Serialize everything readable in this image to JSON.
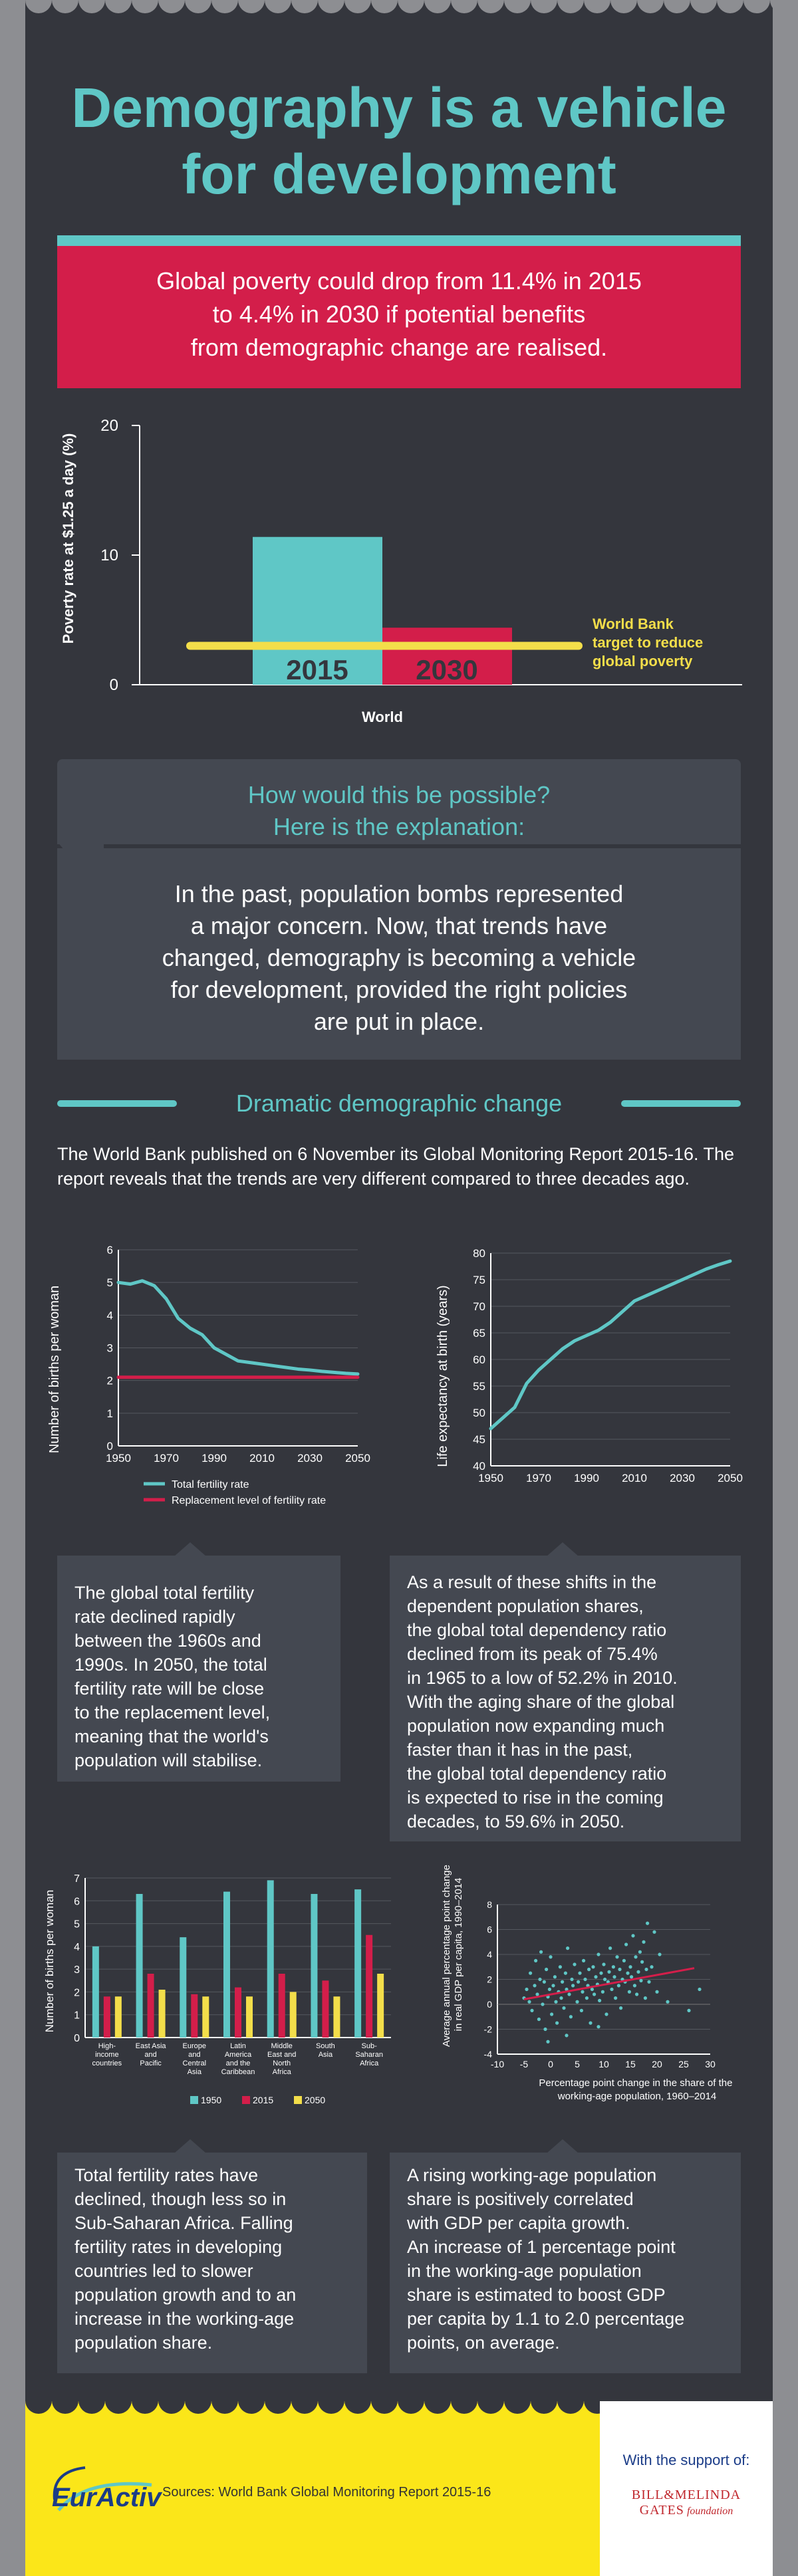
{
  "title_lines": [
    "Demography is a vehicle",
    "for development"
  ],
  "highlight_lines": [
    "Global poverty could drop from 11.4% in 2015",
    "to 4.4% in 2030 if potential benefits",
    "from demographic change are realised."
  ],
  "poverty_chart": {
    "type": "bar",
    "categories": [
      "2015",
      "2030"
    ],
    "values": [
      11.4,
      4.4
    ],
    "ylabel": "Poverty rate at $1.25 a day (%)",
    "xlabel": "World",
    "ylim": [
      0,
      20
    ],
    "yticks": [
      "0",
      "10",
      "20"
    ],
    "target_value": 3,
    "target_label_lines": [
      "World Bank",
      "target to reduce",
      "global poverty"
    ],
    "colors": {
      "2015": "#5fc7c6",
      "2030": "#d31e4a",
      "target": "#f3de4a"
    }
  },
  "question_lines": [
    "How would this be possible?",
    "Here is the explanation:"
  ],
  "explanation_lines": [
    "In the past, population bombs represented",
    "a major concern. Now, that trends have",
    "changed, demography is becoming a vehicle",
    "for development, provided the right policies",
    "are put in place."
  ],
  "section_heading": "Dramatic demographic change",
  "intro_text": "The World Bank published on 6 November its Global Monitoring Report 2015-16. The report reveals that the trends are very different compared to three decades ago.",
  "chart_data": [
    {
      "type": "line",
      "ylabel": "Number of births per woman",
      "ylim": [
        0,
        6
      ],
      "yticks": [
        "0",
        "1",
        "2",
        "3",
        "4",
        "5",
        "6"
      ],
      "xticks": [
        "1950",
        "1970",
        "1990",
        "2010",
        "2030",
        "2050"
      ],
      "series": [
        {
          "name": "Total fertility rate",
          "x": [
            1950,
            1955,
            1960,
            1965,
            1970,
            1975,
            1980,
            1985,
            1990,
            1995,
            2000,
            2005,
            2010,
            2015,
            2020,
            2025,
            2030,
            2035,
            2040,
            2045,
            2050
          ],
          "values": [
            5.0,
            4.95,
            5.05,
            4.9,
            4.5,
            3.9,
            3.6,
            3.4,
            3.0,
            2.8,
            2.6,
            2.55,
            2.5,
            2.45,
            2.4,
            2.35,
            2.32,
            2.28,
            2.25,
            2.22,
            2.2
          ],
          "color": "#5fc7c6"
        },
        {
          "name": "Replacement level of fertility rate",
          "x": [
            1950,
            2050
          ],
          "values": [
            2.1,
            2.1
          ],
          "color": "#d31e4a"
        }
      ]
    },
    {
      "type": "line",
      "ylabel": "Life expectancy at birth (years)",
      "ylim": [
        40,
        80
      ],
      "yticks": [
        "40",
        "45",
        "50",
        "55",
        "60",
        "65",
        "70",
        "75",
        "80"
      ],
      "xticks": [
        "1950",
        "1970",
        "1990",
        "2010",
        "2030",
        "2050"
      ],
      "series": [
        {
          "x": [
            1950,
            1955,
            1960,
            1965,
            1970,
            1975,
            1980,
            1985,
            1990,
            1995,
            2000,
            2005,
            2010,
            2015,
            2020,
            2025,
            2030,
            2035,
            2040,
            2045,
            2050
          ],
          "values": [
            47,
            49,
            51,
            55.5,
            58,
            60,
            62,
            63.5,
            64.5,
            65.5,
            67,
            69,
            71,
            72,
            73,
            74,
            75,
            76,
            77,
            77.8,
            78.5
          ],
          "color": "#5fc7c6"
        }
      ]
    },
    {
      "type": "bar",
      "ylabel": "Number of births per woman",
      "ylim": [
        0,
        7
      ],
      "yticks": [
        "0",
        "1",
        "2",
        "3",
        "4",
        "5",
        "6",
        "7"
      ],
      "categories": [
        "High-income countries",
        "East Asia and Pacific",
        "Europe and Central Asia",
        "Latin America and the Caribbean",
        "Middle East and North Africa",
        "South Asia",
        "Sub-Saharan Africa"
      ],
      "category_label_lines": [
        [
          "High-",
          "income",
          "countries"
        ],
        [
          "East Asia",
          "and",
          "Pacific"
        ],
        [
          "Europe",
          "and",
          "Central",
          "Asia"
        ],
        [
          "Latin",
          "America",
          "and the",
          "Caribbean"
        ],
        [
          "Middle",
          "East and",
          "North",
          "Africa"
        ],
        [
          "South",
          "Asia"
        ],
        [
          "Sub-",
          "Saharan",
          "Africa"
        ]
      ],
      "series": [
        {
          "name": "1950",
          "values": [
            4.0,
            6.3,
            4.4,
            6.4,
            6.9,
            6.3,
            6.5
          ],
          "color": "#5fc7c6"
        },
        {
          "name": "2015",
          "values": [
            1.8,
            2.8,
            1.9,
            2.2,
            2.8,
            2.5,
            4.5
          ],
          "color": "#d31e4a"
        },
        {
          "name": "2050",
          "values": [
            1.8,
            2.1,
            1.8,
            1.8,
            2.0,
            1.8,
            2.8
          ],
          "color": "#f3de4a"
        }
      ]
    },
    {
      "type": "scatter",
      "ylabel_lines": [
        "Average annual percentage point change",
        "in real GDP per capita, 1990–2014"
      ],
      "xlabel_lines": [
        "Percentage point change in the share of the",
        "working-age population, 1960–2014"
      ],
      "xlim": [
        -10,
        30
      ],
      "ylim": [
        -4,
        8
      ],
      "xticks": [
        "-10",
        "-5",
        "0",
        "5",
        "10",
        "15",
        "20",
        "25",
        "30"
      ],
      "yticks": [
        "-4",
        "-2",
        "0",
        "2",
        "4",
        "6",
        "8"
      ],
      "trend": {
        "x": [
          -5,
          27
        ],
        "values": [
          0.4,
          2.9
        ],
        "color": "#d31e4a"
      },
      "points": [
        [
          -5,
          0.5
        ],
        [
          -4.5,
          1.2
        ],
        [
          -4,
          0.2
        ],
        [
          -3.8,
          2.5
        ],
        [
          -3.5,
          -0.5
        ],
        [
          -3,
          1.5
        ],
        [
          -2.8,
          3.5
        ],
        [
          -2.5,
          0.8
        ],
        [
          -2.2,
          -1.2
        ],
        [
          -2,
          2.0
        ],
        [
          -1.8,
          4.2
        ],
        [
          -1.5,
          0.0
        ],
        [
          -1.2,
          1.8
        ],
        [
          -1,
          -2.0
        ],
        [
          -0.8,
          2.8
        ],
        [
          -0.5,
          0.6
        ],
        [
          -0.2,
          1.2
        ],
        [
          0,
          3.8
        ],
        [
          0.2,
          -0.8
        ],
        [
          0.5,
          1.5
        ],
        [
          0.8,
          2.2
        ],
        [
          1,
          0.2
        ],
        [
          1.2,
          -1.5
        ],
        [
          1.5,
          1.0
        ],
        [
          1.8,
          3.0
        ],
        [
          2,
          0.5
        ],
        [
          2.2,
          1.8
        ],
        [
          2.5,
          -0.3
        ],
        [
          2.8,
          2.5
        ],
        [
          3,
          1.2
        ],
        [
          3.2,
          4.5
        ],
        [
          3.5,
          0.8
        ],
        [
          3.8,
          -1.0
        ],
        [
          4,
          2.0
        ],
        [
          4.2,
          1.5
        ],
        [
          4.5,
          3.2
        ],
        [
          5,
          0.2
        ],
        [
          5.2,
          1.8
        ],
        [
          5.5,
          2.5
        ],
        [
          5.8,
          -0.5
        ],
        [
          6,
          1.0
        ],
        [
          6.2,
          3.5
        ],
        [
          6.5,
          2.0
        ],
        [
          6.8,
          0.5
        ],
        [
          7,
          1.5
        ],
        [
          7.2,
          2.8
        ],
        [
          7.5,
          -1.5
        ],
        [
          7.8,
          1.2
        ],
        [
          8,
          3.0
        ],
        [
          8.2,
          0.8
        ],
        [
          8.5,
          2.2
        ],
        [
          8.8,
          1.6
        ],
        [
          9,
          4.0
        ],
        [
          9.2,
          0.3
        ],
        [
          9.5,
          2.5
        ],
        [
          9.8,
          1.0
        ],
        [
          10,
          3.2
        ],
        [
          10.2,
          2.0
        ],
        [
          10.5,
          -0.8
        ],
        [
          10.8,
          1.8
        ],
        [
          11,
          2.6
        ],
        [
          11.2,
          4.5
        ],
        [
          11.5,
          1.2
        ],
        [
          11.8,
          3.0
        ],
        [
          12,
          2.2
        ],
        [
          12.2,
          0.5
        ],
        [
          12.5,
          3.8
        ],
        [
          12.8,
          1.5
        ],
        [
          13,
          2.8
        ],
        [
          13.2,
          -0.3
        ],
        [
          13.5,
          2.0
        ],
        [
          13.8,
          3.5
        ],
        [
          14,
          1.8
        ],
        [
          14.2,
          4.8
        ],
        [
          14.5,
          2.5
        ],
        [
          14.8,
          1.0
        ],
        [
          15,
          3.0
        ],
        [
          15.2,
          2.2
        ],
        [
          15.5,
          5.5
        ],
        [
          15.8,
          1.5
        ],
        [
          16,
          3.8
        ],
        [
          16.2,
          0.8
        ],
        [
          16.5,
          2.6
        ],
        [
          16.8,
          4.2
        ],
        [
          17,
          1.9
        ],
        [
          17.2,
          3.4
        ],
        [
          17.5,
          5.0
        ],
        [
          17.8,
          0.5
        ],
        [
          18,
          2.8
        ],
        [
          18.2,
          6.5
        ],
        [
          18.5,
          1.8
        ],
        [
          19,
          3.0
        ],
        [
          19.5,
          5.8
        ],
        [
          20,
          1.0
        ],
        [
          20.5,
          4.0
        ],
        [
          22,
          0.2
        ],
        [
          26,
          -0.5
        ],
        [
          28,
          1.2
        ],
        [
          -0.5,
          -3.0
        ],
        [
          3,
          -2.5
        ],
        [
          9,
          -1.8
        ]
      ]
    }
  ],
  "legend_fertility": [
    "Total fertility rate",
    "Replacement level of fertility rate"
  ],
  "box_fertility_lines": [
    "The global total fertility",
    "rate declined rapidly",
    "between the 1960s and",
    "1990s. In 2050, the total",
    "fertility rate will be close",
    "to the replacement level,",
    "meaning that the world's",
    "population will stabilise."
  ],
  "box_dependency_lines": [
    "As a result of these shifts in the",
    "dependent population shares,",
    "the global total dependency ratio",
    "declined from its peak of 75.4%",
    "in 1965 to a low of 52.2% in 2010.",
    "With the aging share of the global",
    "population now expanding much",
    "faster than it has in the past,",
    "the global total dependency ratio",
    "is expected to rise in the coming",
    "decades, to 59.6% in 2050."
  ],
  "box_regional_lines": [
    "Total fertility rates have",
    "declined, though less so in",
    "Sub-Saharan Africa. Falling",
    "fertility rates in developing",
    "countries led to slower",
    "population growth and to an",
    "increase in the working-age",
    "population share."
  ],
  "box_gdp_lines": [
    "A rising working-age population",
    "share is positively correlated",
    "with GDP per capita growth.",
    "An increase of 1 percentage point",
    "in the working-age population",
    "share is estimated to boost GDP",
    "per capita by 1.1 to 2.0 percentage",
    "points, on average."
  ],
  "footer": {
    "logo_text": "EurActiv",
    "sources": "Sources: World Bank Global Monitoring Report 2015-16",
    "support": "With the support of:",
    "gates_line1": "BILL&MELINDA",
    "gates_line2": "GATES",
    "gates_line3": "foundation"
  }
}
